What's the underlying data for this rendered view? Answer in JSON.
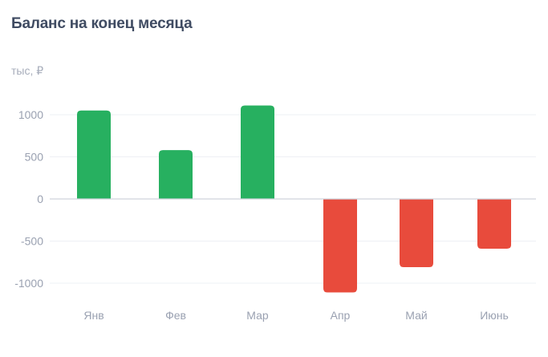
{
  "chart_data": {
    "type": "bar",
    "title": "Баланс на конец месяца",
    "unit_label": "тыс, ₽",
    "categories": [
      "Янв",
      "Фев",
      "Мар",
      "Апр",
      "Май",
      "Июнь"
    ],
    "values": [
      1050,
      580,
      1110,
      -1110,
      -810,
      -590
    ],
    "yticks": [
      1000,
      500,
      0,
      -500,
      -1000
    ],
    "ylim": [
      -1230,
      1230
    ],
    "positive_color": "#27b060",
    "negative_color": "#e84b3c",
    "grid": true,
    "legend": "none"
  }
}
